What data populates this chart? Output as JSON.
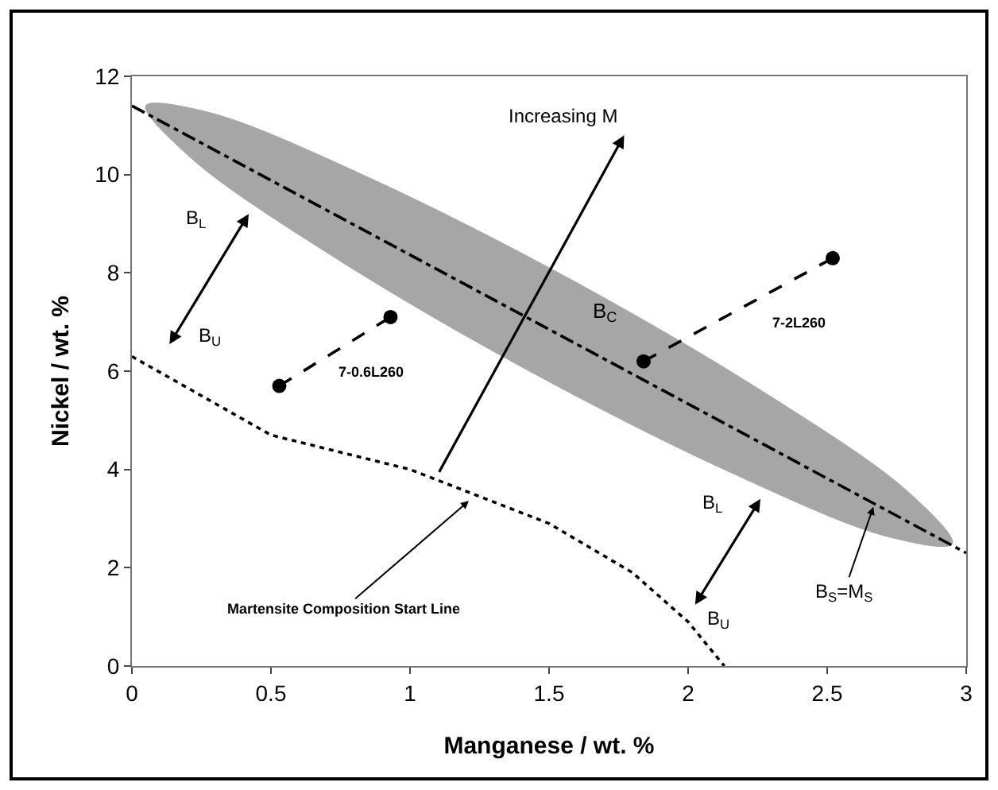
{
  "chart_data": {
    "type": "line",
    "xlabel": "Manganese / wt. %",
    "ylabel": "Nickel / wt. %",
    "xlim": [
      0,
      3
    ],
    "xticks": [
      0,
      0.5,
      1,
      1.5,
      2,
      2.5,
      3
    ],
    "ylim": [
      0,
      12
    ],
    "yticks": [
      0,
      2,
      4,
      6,
      8,
      10,
      12
    ],
    "grid": false,
    "series": [
      {
        "type": "area",
        "color": "#a6a6a6",
        "x": [
          2.95,
          2.72,
          2.16,
          1.42,
          0.71,
          0.21,
          0.05,
          0.28,
          0.84,
          1.58,
          2.29,
          2.79,
          2.95
        ],
        "values": [
          2.49,
          2.63,
          3.92,
          6.03,
          8.38,
          10.35,
          11.4,
          11.26,
          9.97,
          7.86,
          5.51,
          3.55,
          2.49
        ]
      },
      {
        "color": "#000000",
        "line_style": "dashdot",
        "marker": "none",
        "x": [
          0,
          3
        ],
        "values": [
          11.4,
          2.3
        ]
      },
      {
        "color": "#000000",
        "line_style": "dotted",
        "marker": "none",
        "x": [
          0,
          0.5,
          1,
          1.5,
          1.8,
          2,
          2.13
        ],
        "values": [
          6.3,
          4.7,
          4.0,
          2.9,
          1.9,
          0.9,
          0
        ]
      },
      {
        "color": "#000000",
        "line_style": "dashed",
        "marker": "circle",
        "x": [
          0.53,
          0.93
        ],
        "values": [
          5.7,
          7.1
        ]
      },
      {
        "color": "#000000",
        "line_style": "dashed",
        "marker": "circle",
        "x": [
          1.84,
          2.52
        ],
        "values": [
          6.2,
          8.3
        ]
      }
    ],
    "annotations": [
      "Increasing M",
      "B$_{L}$",
      "B$_{U}$",
      "B$_{C}$",
      "7-0.6L260",
      "7-2L260",
      {
        "text": "Martensite Composition Start Line",
        "x": 1.22,
        "y": 3.4
      },
      "B$_{L}$",
      "B$_{U}$",
      {
        "text": "B$_{S}$=M$_{S}$",
        "x": 2.67,
        "y": 3.3
      }
    ]
  }
}
